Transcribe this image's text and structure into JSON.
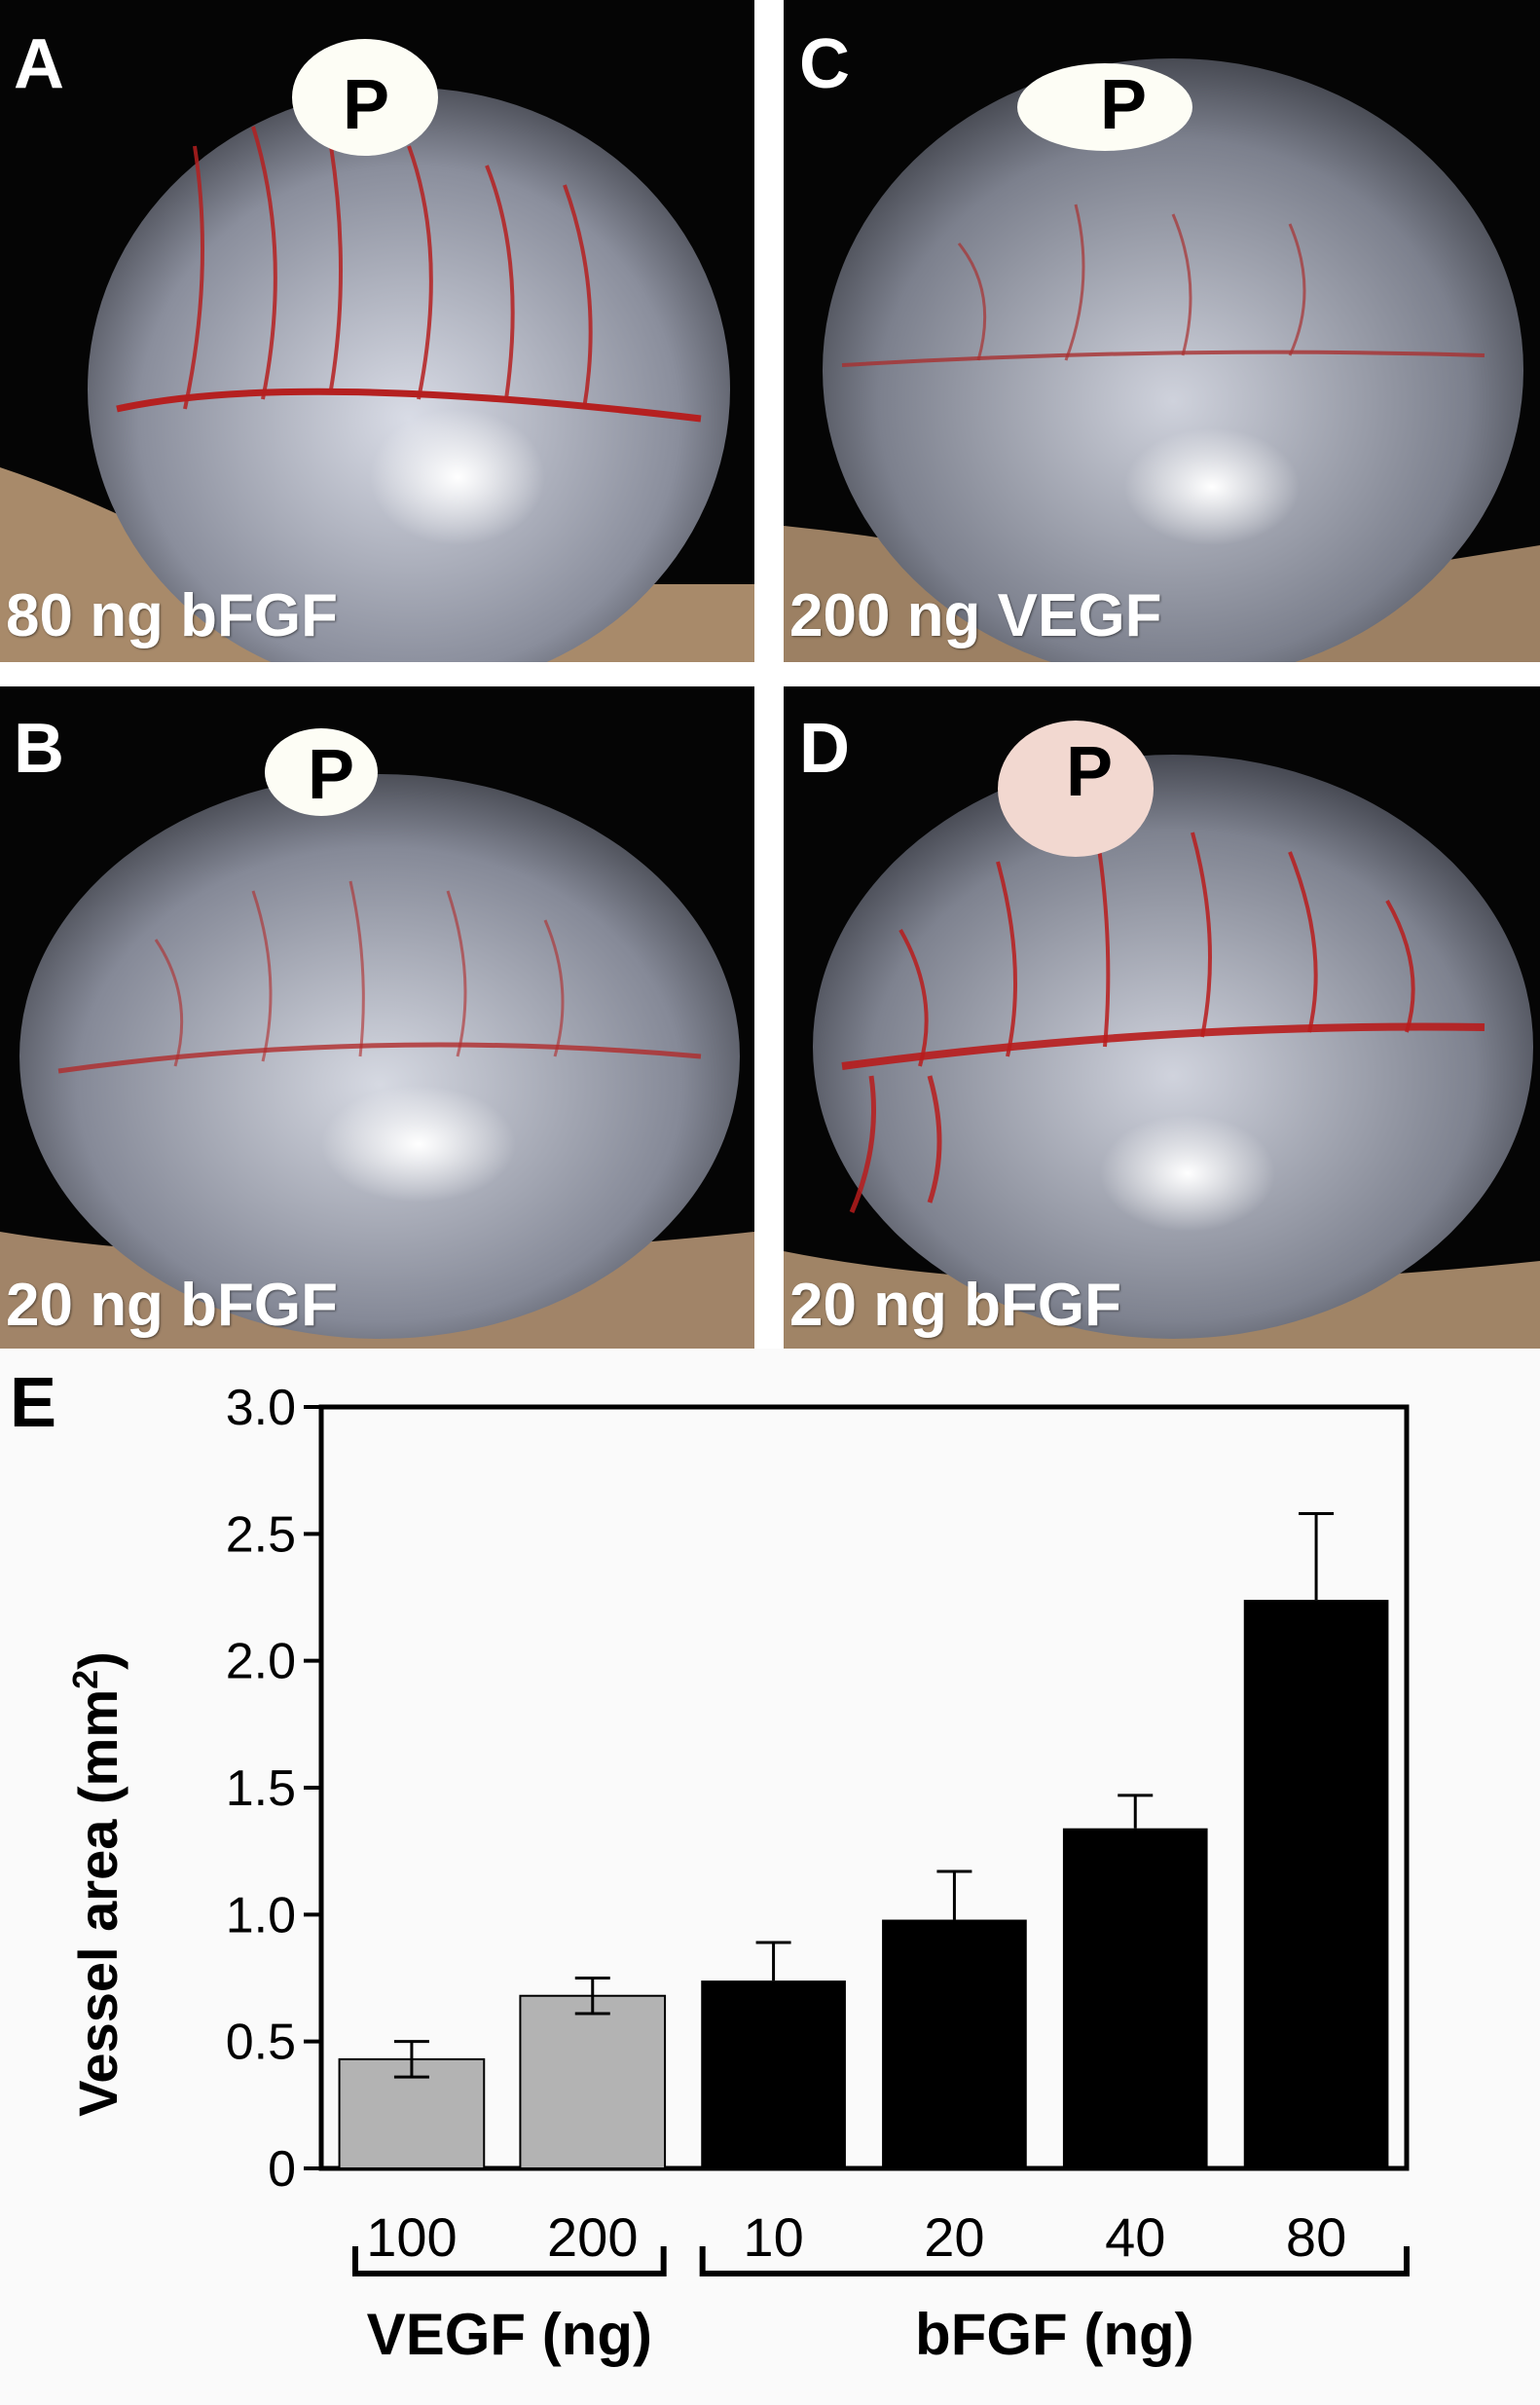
{
  "panels": [
    {
      "letter": "A",
      "p_label": "P",
      "caption": "80 ng bFGF"
    },
    {
      "letter": "C",
      "p_label": "P",
      "caption": "200 ng VEGF"
    },
    {
      "letter": "B",
      "p_label": "P",
      "caption": "20 ng bFGF"
    },
    {
      "letter": "D",
      "p_label": "P",
      "caption": "20 ng bFGF"
    }
  ],
  "chart_panel_letter": "E",
  "chart_data": {
    "type": "bar",
    "ylabel": "Vessel area (mm²)",
    "ylabel_main": "Vessel area (mm",
    "ylabel_sup": "2",
    "ylabel_tail": ")",
    "ylim": [
      0,
      3.0
    ],
    "yticks": [
      "0",
      "0.5",
      "1.0",
      "1.5",
      "2.0",
      "2.5",
      "3.0"
    ],
    "ytick_values": [
      0,
      0.5,
      1.0,
      1.5,
      2.0,
      2.5,
      3.0
    ],
    "categories": [
      "100",
      "200",
      "10",
      "20",
      "40",
      "80"
    ],
    "groups": [
      {
        "name": "VEGF (ng)",
        "categories": [
          "100",
          "200"
        ],
        "color": "#b3b3b3"
      },
      {
        "name": "bFGF (ng)",
        "categories": [
          "10",
          "20",
          "40",
          "80"
        ],
        "color": "#000000"
      }
    ],
    "values": [
      0.43,
      0.68,
      0.74,
      0.98,
      1.34,
      2.24
    ],
    "errors": [
      0.07,
      0.07,
      0.15,
      0.19,
      0.13,
      0.34
    ],
    "bar_colors": [
      "#b3b3b3",
      "#b3b3b3",
      "#000000",
      "#000000",
      "#000000",
      "#000000"
    ],
    "grid": false
  }
}
